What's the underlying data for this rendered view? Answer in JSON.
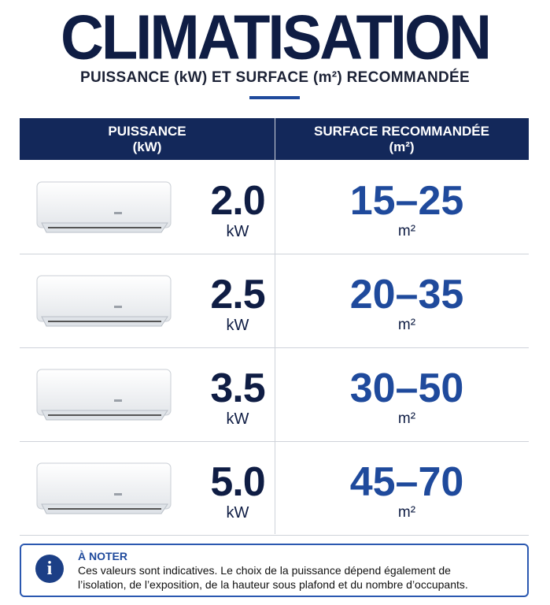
{
  "header": {
    "title": "CLIMATISATION",
    "subtitle": "PUISSANCE (kW) ET SURFACE (m²) RECOMMANDÉE"
  },
  "table": {
    "headers": [
      {
        "label": "PUISSANCE",
        "unit": "(kW)"
      },
      {
        "label": "SURFACE RECOMMANDÉE",
        "unit": "(m²)"
      }
    ],
    "rows": [
      {
        "power": "2.0",
        "power_unit": "kW",
        "surface": "15–25",
        "surface_unit": "m²"
      },
      {
        "power": "2.5",
        "power_unit": "kW",
        "surface": "20–35",
        "surface_unit": "m²"
      },
      {
        "power": "3.5",
        "power_unit": "kW",
        "surface": "30–50",
        "surface_unit": "m²"
      },
      {
        "power": "5.0",
        "power_unit": "kW",
        "surface": "45–70",
        "surface_unit": "m²"
      }
    ]
  },
  "note": {
    "title": "À NOTER",
    "lines": [
      "Ces valeurs sont indicatives. Le choix de la puissance dépend également de",
      "l’isolation, de l’exposition, de la hauteur sous plafond et du nombre d’occupants."
    ]
  }
}
